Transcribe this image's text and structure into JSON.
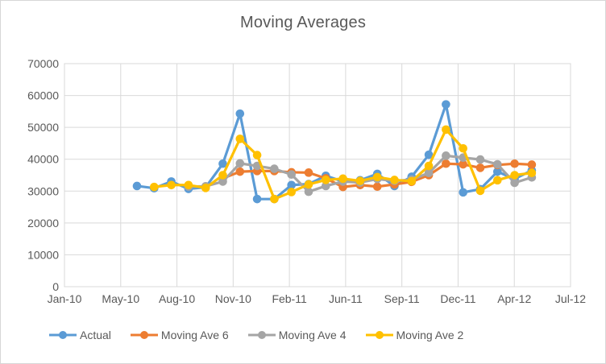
{
  "chart_data": {
    "type": "line",
    "title": "Moving Averages",
    "categories": [
      "May-10",
      "Jun-10",
      "Jul-10",
      "Aug-10",
      "Sep-10",
      "Oct-10",
      "Nov-10",
      "Dec-10",
      "Jan-11",
      "Feb-11",
      "Mar-11",
      "Apr-11",
      "May-11",
      "Jun-11",
      "Jul-11",
      "Aug-11",
      "Sep-11",
      "Oct-11",
      "Nov-11",
      "Dec-11",
      "Jan-12",
      "Feb-12",
      "Mar-12",
      "Apr-12"
    ],
    "series": [
      {
        "name": "Actual",
        "color": "#5B9BD5",
        "values": [
          31600,
          30900,
          33000,
          30700,
          31200,
          38600,
          54300,
          27500,
          27500,
          31900,
          32200,
          34800,
          33000,
          33400,
          35400,
          31600,
          34500,
          41400,
          57200,
          29600,
          30600,
          36100,
          33800,
          36500
        ]
      },
      {
        "name": "Moving Ave 6",
        "color": "#ED7D31",
        "values": [
          null,
          null,
          null,
          null,
          null,
          34000,
          36100,
          36300,
          36300,
          35900,
          35800,
          34000,
          31300,
          31900,
          31400,
          32100,
          32900,
          35000,
          38600,
          38400,
          37300,
          38200,
          38600,
          38300
        ]
      },
      {
        "name": "Moving Ave 4",
        "color": "#A5A5A5",
        "values": [
          null,
          null,
          null,
          31400,
          31500,
          33000,
          38700,
          37900,
          37000,
          35200,
          29800,
          31600,
          33000,
          32700,
          33800,
          33200,
          33600,
          35700,
          41100,
          40500,
          39900,
          38400,
          32600,
          34300
        ]
      },
      {
        "name": "Moving Ave 2",
        "color": "#FFC000",
        "values": [
          null,
          31300,
          31900,
          31900,
          31000,
          35000,
          46400,
          41300,
          27500,
          29700,
          32100,
          33500,
          33900,
          33200,
          34400,
          33500,
          33100,
          37900,
          49300,
          43400,
          30100,
          33400,
          35000,
          35700
        ]
      }
    ],
    "x_axis": {
      "tick_labels": [
        "Jan-10",
        "May-10",
        "Aug-10",
        "Nov-10",
        "Feb-11",
        "Jun-11",
        "Sep-11",
        "Dec-11",
        "Apr-12",
        "Jul-12"
      ]
    },
    "y_axis": {
      "min": 0,
      "max": 70000,
      "step": 10000,
      "tick_labels": [
        "0",
        "10000",
        "20000",
        "30000",
        "40000",
        "50000",
        "60000",
        "70000"
      ]
    },
    "grid": true,
    "legend_position": "bottom",
    "text_color": "#595959",
    "grid_color": "#D9D9D9"
  }
}
